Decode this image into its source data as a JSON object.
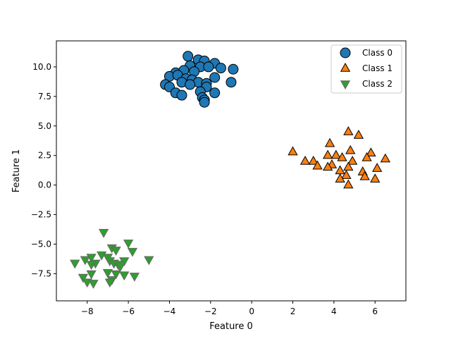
{
  "chart_data": {
    "type": "scatter",
    "xlabel": "Feature 0",
    "ylabel": "Feature 1",
    "xlim": [
      -9.5,
      7.5
    ],
    "ylim": [
      -9.8,
      12.2
    ],
    "xticks": [
      -8,
      -6,
      -4,
      -2,
      0,
      2,
      4,
      6
    ],
    "xtick_labels": [
      "−8",
      "−6",
      "−4",
      "−2",
      "0",
      "2",
      "4",
      "6"
    ],
    "yticks": [
      -7.5,
      -5.0,
      -2.5,
      0.0,
      2.5,
      5.0,
      7.5,
      10.0
    ],
    "ytick_labels": [
      "−7.5",
      "−5.0",
      "−2.5",
      "0.0",
      "2.5",
      "5.0",
      "7.5",
      "10.0"
    ],
    "grid": false,
    "legend_position": "top-right",
    "series": [
      {
        "name": "Class 0",
        "marker": "circle",
        "color": "#1f77b4",
        "points": [
          [
            -3.1,
            10.9
          ],
          [
            -2.6,
            10.6
          ],
          [
            -2.3,
            10.5
          ],
          [
            -1.8,
            10.3
          ],
          [
            -3.0,
            10.1
          ],
          [
            -2.5,
            10.0
          ],
          [
            -2.1,
            10.0
          ],
          [
            -1.5,
            9.9
          ],
          [
            -0.9,
            9.8
          ],
          [
            -3.7,
            9.5
          ],
          [
            -3.3,
            9.7
          ],
          [
            -2.8,
            9.6
          ],
          [
            -4.0,
            9.2
          ],
          [
            -3.6,
            9.3
          ],
          [
            -3.2,
            9.0
          ],
          [
            -1.8,
            9.1
          ],
          [
            -2.9,
            8.9
          ],
          [
            -3.4,
            8.7
          ],
          [
            -2.6,
            8.7
          ],
          [
            -2.2,
            8.6
          ],
          [
            -3.0,
            8.5
          ],
          [
            -4.2,
            8.5
          ],
          [
            -4.0,
            8.3
          ],
          [
            -1.0,
            8.7
          ],
          [
            -2.2,
            8.3
          ],
          [
            -3.7,
            7.8
          ],
          [
            -3.4,
            7.6
          ],
          [
            -2.5,
            7.9
          ],
          [
            -1.8,
            7.8
          ],
          [
            -2.4,
            7.4
          ],
          [
            -2.3,
            7.2
          ],
          [
            -2.3,
            7.0
          ]
        ]
      },
      {
        "name": "Class 1",
        "marker": "triangle-up",
        "color": "#ff7f0e",
        "points": [
          [
            4.7,
            4.5
          ],
          [
            5.2,
            4.2
          ],
          [
            3.8,
            3.5
          ],
          [
            2.0,
            2.8
          ],
          [
            4.8,
            2.9
          ],
          [
            5.8,
            2.7
          ],
          [
            4.1,
            2.5
          ],
          [
            3.7,
            2.5
          ],
          [
            4.4,
            2.3
          ],
          [
            5.6,
            2.3
          ],
          [
            2.6,
            2.0
          ],
          [
            3.0,
            2.0
          ],
          [
            4.9,
            2.0
          ],
          [
            6.5,
            2.2
          ],
          [
            3.9,
            1.7
          ],
          [
            3.2,
            1.6
          ],
          [
            3.7,
            1.5
          ],
          [
            4.7,
            1.5
          ],
          [
            6.1,
            1.4
          ],
          [
            4.3,
            1.2
          ],
          [
            5.4,
            1.1
          ],
          [
            4.6,
            0.8
          ],
          [
            5.5,
            0.7
          ],
          [
            4.3,
            0.5
          ],
          [
            6.0,
            0.5
          ],
          [
            4.7,
            0.0
          ]
        ]
      },
      {
        "name": "Class 2",
        "marker": "triangle-down",
        "color": "#2ca02c",
        "points": [
          [
            -7.2,
            -4.0
          ],
          [
            -6.0,
            -4.9
          ],
          [
            -6.8,
            -5.3
          ],
          [
            -6.6,
            -5.5
          ],
          [
            -5.8,
            -5.6
          ],
          [
            -7.3,
            -5.9
          ],
          [
            -7.0,
            -6.1
          ],
          [
            -7.8,
            -6.1
          ],
          [
            -8.1,
            -6.3
          ],
          [
            -6.9,
            -6.4
          ],
          [
            -6.2,
            -6.4
          ],
          [
            -5.0,
            -6.3
          ],
          [
            -7.6,
            -6.6
          ],
          [
            -7.8,
            -6.7
          ],
          [
            -6.7,
            -6.6
          ],
          [
            -6.5,
            -6.7
          ],
          [
            -8.6,
            -6.6
          ],
          [
            -6.4,
            -6.9
          ],
          [
            -7.0,
            -7.4
          ],
          [
            -6.6,
            -7.5
          ],
          [
            -6.2,
            -7.6
          ],
          [
            -7.8,
            -7.5
          ],
          [
            -5.7,
            -7.7
          ],
          [
            -8.2,
            -7.8
          ],
          [
            -6.8,
            -8.0
          ],
          [
            -8.0,
            -8.2
          ],
          [
            -6.9,
            -8.2
          ],
          [
            -7.7,
            -8.3
          ]
        ]
      }
    ]
  }
}
